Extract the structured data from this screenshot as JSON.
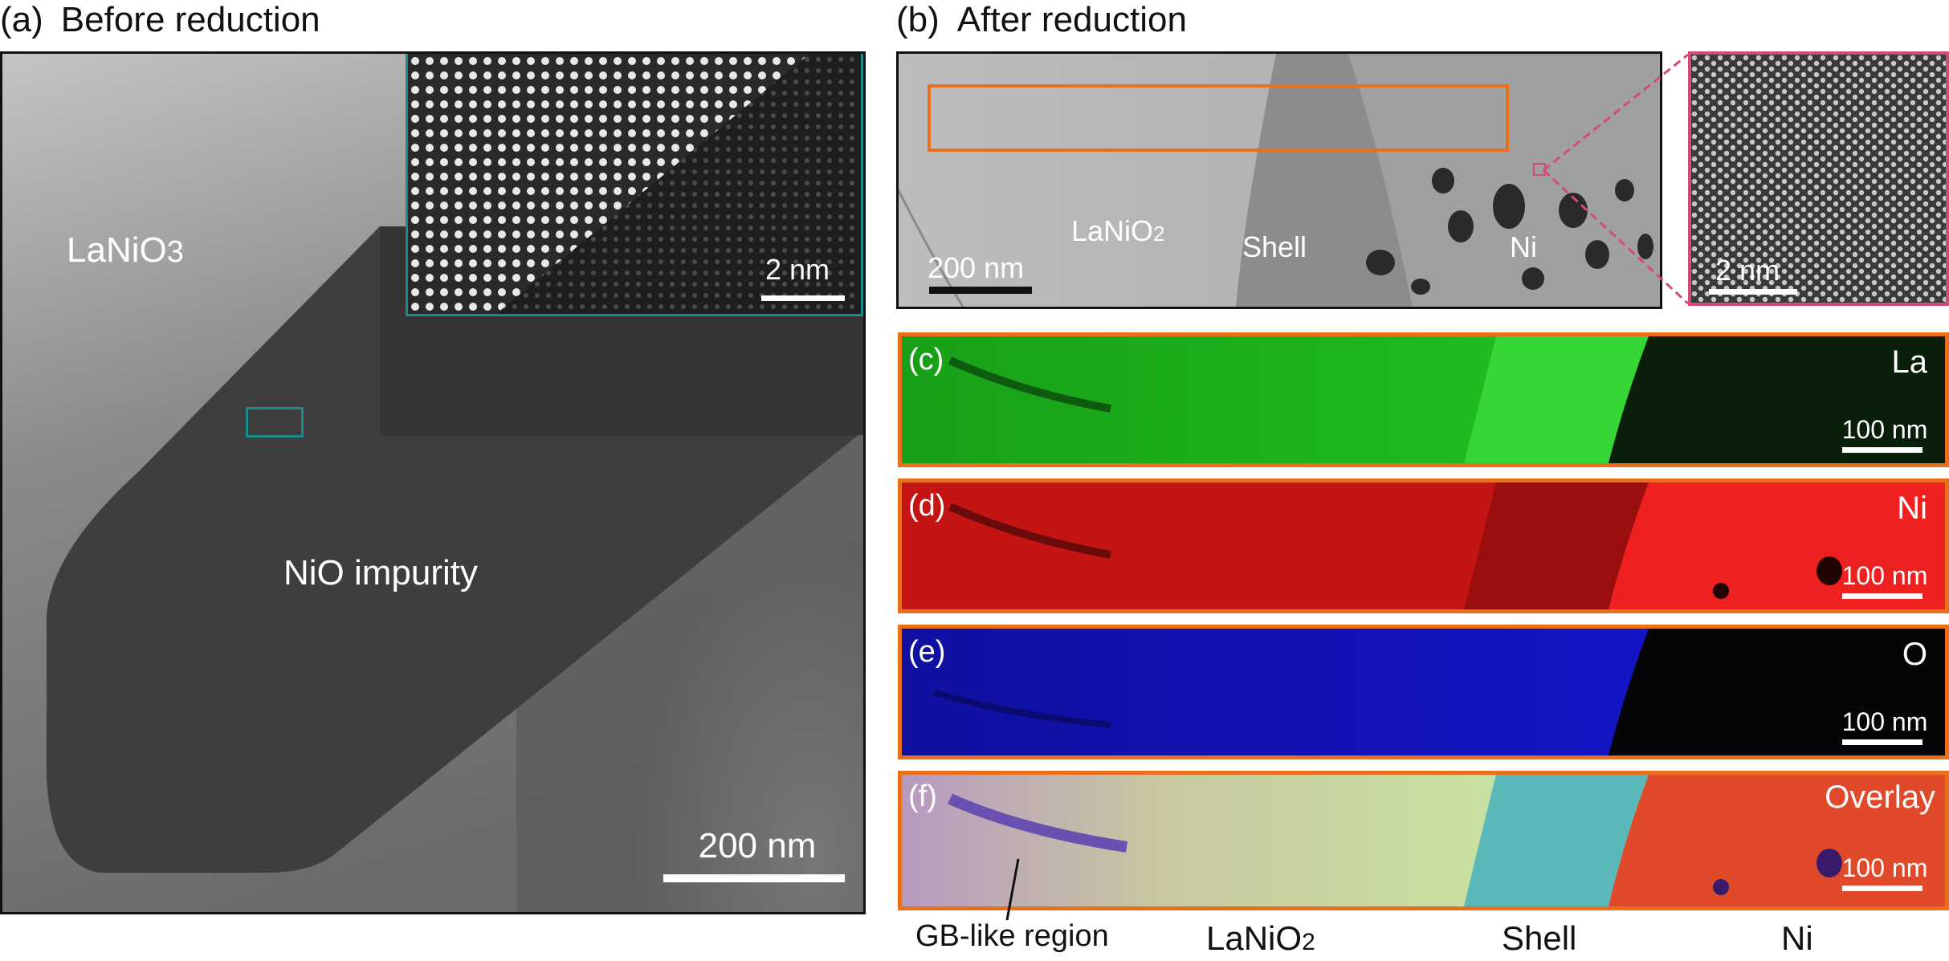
{
  "panel_a": {
    "letter": "(a)",
    "title": "Before reduction",
    "label_lanio3": "LaNiO",
    "label_lanio3_sub": "3",
    "label_nio": "NiO impurity",
    "inset_scale": "2 nm",
    "scale": "200 nm",
    "inset_border_color": "#1a8a8a"
  },
  "panel_b": {
    "letter": "(b)",
    "title": "After reduction",
    "label_lanio2": "LaNiO",
    "label_lanio2_sub": "2",
    "label_shell": "Shell",
    "label_ni": "Ni",
    "scale": "200 nm",
    "inset_scale": "2 nm",
    "roi_color": "#e8701c",
    "inset_border_color": "#d44a7a"
  },
  "maps": [
    {
      "letter": "(c)",
      "element": "La",
      "scale": "100 nm",
      "color": "#1cc01c"
    },
    {
      "letter": "(d)",
      "element": "Ni",
      "scale": "100 nm",
      "color": "#e01818"
    },
    {
      "letter": "(e)",
      "element": "O",
      "scale": "100 nm",
      "color": "#1414e0"
    },
    {
      "letter": "(f)",
      "element": "Overlay",
      "scale": "100 nm",
      "color": "#e04a2a"
    }
  ],
  "footer": {
    "gb": "GB-like region",
    "lanio2": "LaNiO",
    "lanio2_sub": "2",
    "shell": "Shell",
    "ni": "Ni"
  }
}
